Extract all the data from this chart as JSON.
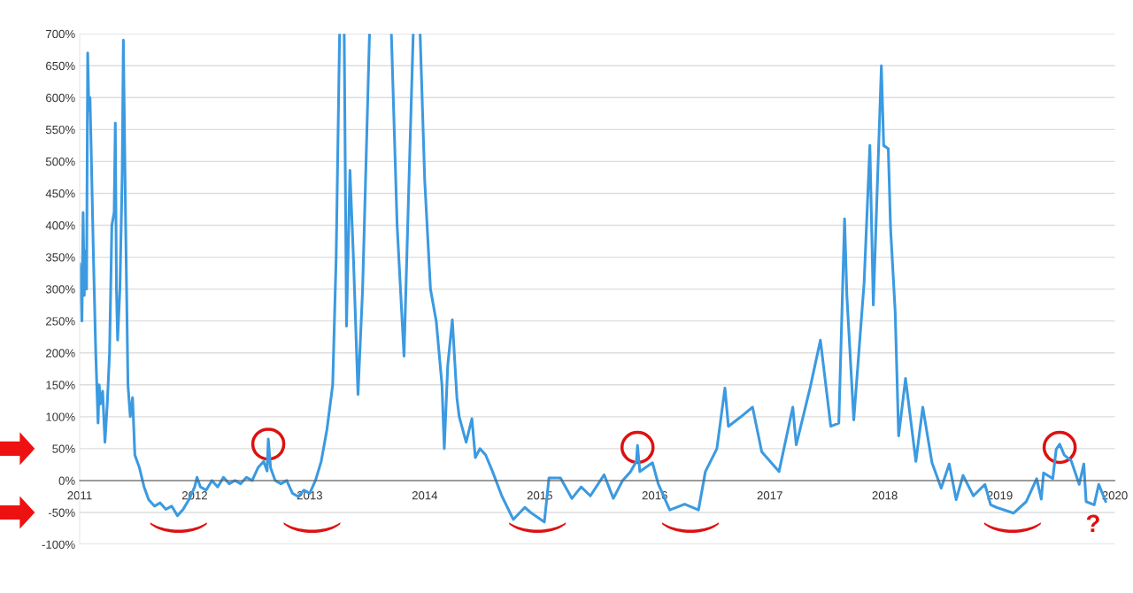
{
  "chart_data": {
    "type": "line",
    "x": [
      2011.0,
      2011.02,
      2011.03,
      2011.04,
      2011.05,
      2011.06,
      2011.07,
      2011.08,
      2011.09,
      2011.1,
      2011.12,
      2011.14,
      2011.16,
      2011.17,
      2011.18,
      2011.2,
      2011.22,
      2011.24,
      2011.26,
      2011.28,
      2011.3,
      2011.31,
      2011.32,
      2011.33,
      2011.35,
      2011.37,
      2011.38,
      2011.4,
      2011.42,
      2011.44,
      2011.46,
      2011.48,
      2011.52,
      2011.56,
      2011.6,
      2011.65,
      2011.7,
      2011.75,
      2011.8,
      2011.85,
      2011.9,
      2011.95,
      2012.0,
      2012.02,
      2012.05,
      2012.1,
      2012.15,
      2012.2,
      2012.25,
      2012.3,
      2012.35,
      2012.4,
      2012.45,
      2012.5,
      2012.55,
      2012.6,
      2012.63,
      2012.64,
      2012.66,
      2012.7,
      2012.75,
      2012.8,
      2012.85,
      2012.9,
      2012.95,
      2013.0,
      2013.05,
      2013.1,
      2013.15,
      2013.2,
      2013.23,
      2013.26,
      2013.27,
      2013.3,
      2013.32,
      2013.35,
      2013.38,
      2013.42,
      2013.46,
      2013.52,
      2013.6,
      2013.71,
      2013.76,
      2013.82,
      2013.86,
      2013.9,
      2013.93,
      2013.96,
      2014.0,
      2014.05,
      2014.1,
      2014.15,
      2014.17,
      2014.2,
      2014.24,
      2014.28,
      2014.3,
      2014.36,
      2014.41,
      2014.44,
      2014.48,
      2014.53,
      2014.59,
      2014.67,
      2014.77,
      2014.87,
      2014.92,
      2015.04,
      2015.08,
      2015.18,
      2015.28,
      2015.36,
      2015.44,
      2015.56,
      2015.64,
      2015.72,
      2015.79,
      2015.84,
      2015.85,
      2015.87,
      2015.98,
      2016.03,
      2016.13,
      2016.26,
      2016.38,
      2016.44,
      2016.54,
      2016.61,
      2016.64,
      2016.75,
      2016.85,
      2016.93,
      2017.08,
      2017.2,
      2017.23,
      2017.35,
      2017.44,
      2017.53,
      2017.6,
      2017.65,
      2017.67,
      2017.73,
      2017.82,
      2017.87,
      2017.9,
      2017.97,
      2017.99,
      2018.03,
      2018.05,
      2018.09,
      2018.12,
      2018.18,
      2018.27,
      2018.33,
      2018.41,
      2018.49,
      2018.56,
      2018.62,
      2018.68,
      2018.77,
      2018.87,
      2018.92,
      2018.97,
      2019.12,
      2019.23,
      2019.32,
      2019.36,
      2019.38,
      2019.46,
      2019.49,
      2019.52,
      2019.56,
      2019.62,
      2019.69,
      2019.73,
      2019.75,
      2019.82,
      2019.86,
      2019.92
    ],
    "series": [
      {
        "color": "#3b9ae1",
        "values": [
          340,
          250,
          420,
          290,
          360,
          300,
          670,
          580,
          600,
          520,
          350,
          200,
          90,
          150,
          120,
          140,
          60,
          120,
          200,
          400,
          420,
          560,
          300,
          220,
          300,
          480,
          690,
          400,
          150,
          100,
          130,
          40,
          20,
          -10,
          -30,
          -40,
          -35,
          -45,
          -40,
          -55,
          -45,
          -30,
          -10,
          5,
          -10,
          -15,
          0,
          -10,
          5,
          -5,
          0,
          -5,
          5,
          0,
          20,
          30,
          15,
          65,
          20,
          0,
          -5,
          0,
          -20,
          -25,
          -15,
          -20,
          0,
          30,
          80,
          150,
          350,
          700,
          null,
          700,
          242,
          486,
          350,
          135,
          300,
          700,
          null,
          700,
          400,
          195,
          450,
          700,
          null,
          700,
          470,
          300,
          250,
          150,
          50,
          180,
          252,
          129,
          100,
          60,
          97,
          36,
          50,
          40,
          14,
          -24,
          -61,
          -42,
          -50,
          -65,
          4,
          4,
          -28,
          -10,
          -24,
          9,
          -28,
          0,
          14,
          30,
          55,
          14,
          28,
          -5,
          -46,
          -37,
          -46,
          14,
          50,
          145,
          85,
          100,
          115,
          45,
          14,
          115,
          56,
          145,
          220,
          85,
          90,
          410,
          290,
          95,
          310,
          525,
          275,
          650,
          525,
          520,
          395,
          265,
          70,
          160,
          30,
          115,
          28,
          -12,
          26,
          -30,
          8,
          -24,
          -6,
          -38,
          -42,
          -51,
          -33,
          3,
          -29,
          12,
          3,
          49,
          57,
          40,
          31,
          -6,
          26,
          -33,
          -38,
          -6,
          -33
        ]
      }
    ],
    "xlim": [
      2011,
      2020
    ],
    "xticks": [
      2011,
      2012,
      2013,
      2014,
      2015,
      2016,
      2017,
      2018,
      2019,
      2020
    ],
    "ylim": [
      -100,
      700
    ],
    "yticks": [
      {
        "value": -100,
        "label": "-100%"
      },
      {
        "value": -50,
        "label": "-50%"
      },
      {
        "value": 0,
        "label": "0%"
      },
      {
        "value": 50,
        "label": "50%"
      },
      {
        "value": 100,
        "label": "100%"
      },
      {
        "value": 150,
        "label": "150%"
      },
      {
        "value": 200,
        "label": "200%"
      },
      {
        "value": 250,
        "label": "250%"
      },
      {
        "value": 300,
        "label": "300%"
      },
      {
        "value": 350,
        "label": "350%"
      },
      {
        "value": 400,
        "label": "400%"
      },
      {
        "value": 450,
        "label": "450%"
      },
      {
        "value": 500,
        "label": "500%"
      },
      {
        "value": 550,
        "label": "550%"
      },
      {
        "value": 600,
        "label": "600%"
      },
      {
        "value": 650,
        "label": "650%"
      },
      {
        "value": 700,
        "label": "700%"
      }
    ],
    "grid": "y",
    "annotations": [
      "?"
    ]
  }
}
